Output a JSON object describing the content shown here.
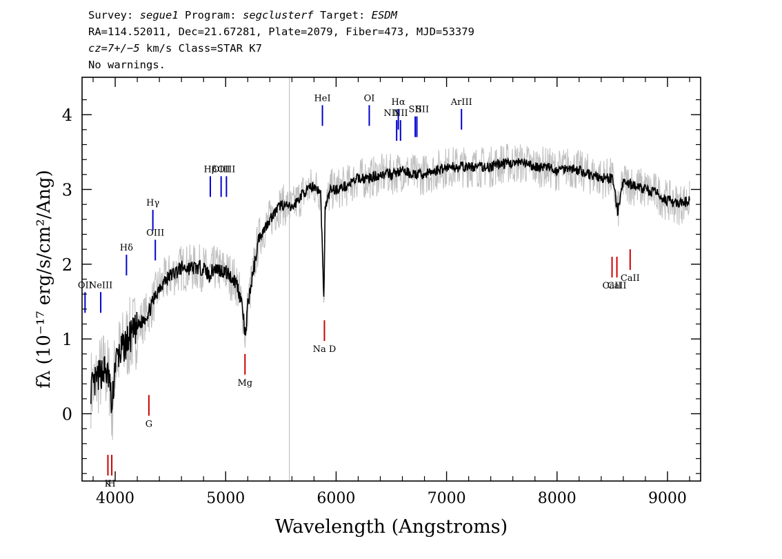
{
  "header": {
    "survey_prefix": "Survey: ",
    "survey": "segue1",
    "program_prefix": " Program: ",
    "program": "segclusterf",
    "target_prefix": " Target: ",
    "target": "ESDM",
    "line2": "RA=114.52011, Dec=21.67281, Plate=2079, Fiber=473, MJD=53379",
    "line3_cz": "cz=7+/−5",
    "line3_rest": " km/s Class=STAR K7",
    "line4": "No warnings."
  },
  "chart_data": {
    "type": "line",
    "xlabel": "Wavelength (Angstroms)",
    "ylabel": "fλ (10⁻¹⁷ erg/s/cm²/Ang)",
    "xlim": [
      3700,
      9300
    ],
    "ylim": [
      -0.9,
      4.5
    ],
    "x_ticks": [
      4000,
      5000,
      6000,
      7000,
      8000,
      9000
    ],
    "y_ticks": [
      0,
      1,
      2,
      3,
      4
    ],
    "grid": false,
    "series": [
      {
        "role": "spectrum",
        "color": "#000000",
        "x": [
          3800,
          3850,
          3900,
          3950,
          3970,
          4000,
          4100,
          4200,
          4300,
          4400,
          4500,
          4600,
          4700,
          4800,
          4850,
          4900,
          5000,
          5100,
          5150,
          5180,
          5200,
          5300,
          5400,
          5500,
          5600,
          5700,
          5800,
          5860,
          5890,
          5900,
          5950,
          6000,
          6100,
          6200,
          6300,
          6400,
          6500,
          6600,
          6700,
          6800,
          6900,
          7000,
          7100,
          7200,
          7300,
          7400,
          7500,
          7600,
          7700,
          7800,
          7900,
          8000,
          8100,
          8200,
          8300,
          8400,
          8500,
          8550,
          8600,
          8700,
          8800,
          8900,
          9000,
          9100,
          9200
        ],
        "y": [
          0.35,
          0.5,
          0.6,
          0.45,
          0.0,
          0.7,
          0.95,
          1.15,
          1.35,
          1.7,
          1.85,
          1.95,
          1.95,
          1.95,
          1.85,
          1.95,
          1.9,
          1.75,
          1.45,
          1.0,
          1.45,
          2.35,
          2.6,
          2.8,
          2.75,
          2.95,
          3.05,
          2.95,
          1.5,
          2.75,
          3.0,
          3.0,
          3.05,
          3.15,
          3.15,
          3.2,
          3.2,
          3.25,
          3.2,
          3.2,
          3.25,
          3.3,
          3.3,
          3.3,
          3.3,
          3.3,
          3.35,
          3.35,
          3.35,
          3.3,
          3.3,
          3.25,
          3.3,
          3.25,
          3.2,
          3.15,
          3.15,
          2.7,
          3.1,
          3.05,
          3.0,
          2.95,
          2.85,
          2.8,
          2.85
        ]
      },
      {
        "role": "error band",
        "color": "#c0c0c0",
        "x": [
          3800,
          3950,
          4000,
          4500,
          5000,
          5200,
          5500,
          6000,
          7000,
          8000,
          9000,
          9200
        ],
        "y": [
          0.35,
          0.35,
          0.7,
          1.85,
          1.9,
          1.45,
          2.8,
          3.0,
          3.3,
          3.25,
          2.85,
          2.85
        ]
      }
    ],
    "emission_lines": [
      {
        "label": "OII",
        "x": 3727,
        "y": 1.35
      },
      {
        "label": "NeIII",
        "x": 3869,
        "y": 1.35
      },
      {
        "label": "Hδ",
        "x": 4102,
        "y": 1.85
      },
      {
        "label": "Hγ",
        "x": 4341,
        "y": 2.45
      },
      {
        "label": "OIII",
        "x": 4363,
        "y": 2.05
      },
      {
        "label": "Hβ",
        "x": 4861,
        "y": 2.9
      },
      {
        "label": "OIII",
        "x": 4959,
        "y": 2.9
      },
      {
        "label": "OIII",
        "x": 5007,
        "y": 2.9
      },
      {
        "label": "HeI",
        "x": 5876,
        "y": 3.85
      },
      {
        "label": "OI",
        "x": 6300,
        "y": 3.85
      },
      {
        "label": "NII",
        "x": 6548,
        "y": 3.65
      },
      {
        "label": "Hα",
        "x": 6563,
        "y": 3.8
      },
      {
        "label": "NII",
        "x": 6583,
        "y": 3.65
      },
      {
        "label": "SII",
        "x": 6716,
        "y": 3.7
      },
      {
        "label": "SII",
        "x": 6731,
        "y": 3.7
      },
      {
        "label": "ArIII",
        "x": 7135,
        "y": 3.8
      }
    ],
    "absorption_lines": [
      {
        "label": "K",
        "x": 3934,
        "y": -0.55
      },
      {
        "label": "H",
        "x": 3969,
        "y": -0.55
      },
      {
        "label": "G",
        "x": 4305,
        "y": 0.25
      },
      {
        "label": "Mg",
        "x": 5175,
        "y": 0.8
      },
      {
        "label": "Na D",
        "x": 5894,
        "y": 1.25
      },
      {
        "label": "CaII",
        "x": 8498,
        "y": 2.1
      },
      {
        "label": "CaII",
        "x": 8542,
        "y": 2.1
      },
      {
        "label": "CaII",
        "x": 8662,
        "y": 2.2
      }
    ]
  }
}
